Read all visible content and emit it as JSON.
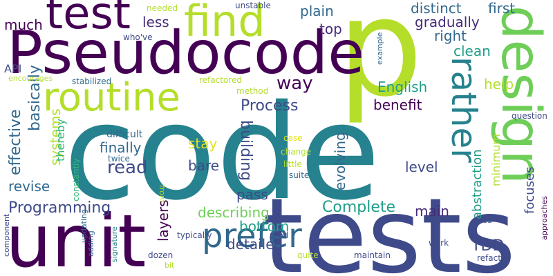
{
  "background": "#ffffff",
  "palette": {
    "dark_purple": "#440154",
    "indigo": "#472c7a",
    "slate_blue": "#3e4a89",
    "steel_blue": "#31688e",
    "teal": "#26828e",
    "green_teal": "#1f9e89",
    "green": "#35b779",
    "light_green": "#6ece58",
    "lime": "#b5de2b",
    "yellow": "#e3e418"
  },
  "words": [
    {
      "text": "code",
      "color": "#26828e"
    },
    {
      "text": "unit",
      "color": "#440154"
    },
    {
      "text": "tests",
      "color": "#3e4a89"
    },
    {
      "text": "p",
      "color": "#b5de2b"
    },
    {
      "text": "Pseudocode",
      "color": "#440154"
    },
    {
      "text": "design",
      "color": "#6ece58"
    },
    {
      "text": "test",
      "color": "#440154"
    },
    {
      "text": "find",
      "color": "#b5de2b"
    },
    {
      "text": "routine",
      "color": "#b5de2b"
    },
    {
      "text": "rather",
      "color": "#26828e"
    },
    {
      "text": "prefer",
      "color": "#31688e"
    },
    {
      "text": "Programming",
      "color": "#3e4a89"
    },
    {
      "text": "Complete",
      "color": "#1f9e89"
    },
    {
      "text": "Process",
      "color": "#3e4a89"
    },
    {
      "text": "read",
      "color": "#3e4a89"
    },
    {
      "text": "way",
      "color": "#440154"
    },
    {
      "text": "building",
      "color": "#3e4a89"
    },
    {
      "text": "basically",
      "color": "#31688e"
    },
    {
      "text": "effective",
      "color": "#31688e"
    },
    {
      "text": "systems",
      "color": "#b5de2b"
    },
    {
      "text": "plain",
      "color": "#31688e"
    },
    {
      "text": "distinct",
      "color": "#31688e"
    },
    {
      "text": "first",
      "color": "#31688e"
    },
    {
      "text": "much",
      "color": "#440154"
    },
    {
      "text": "less",
      "color": "#472c7a"
    },
    {
      "text": "top",
      "color": "#472c7a"
    },
    {
      "text": "gradually",
      "color": "#472c7a"
    },
    {
      "text": "right",
      "color": "#31688e"
    },
    {
      "text": "clean",
      "color": "#1f9e89"
    },
    {
      "text": "English",
      "color": "#1f9e89"
    },
    {
      "text": "help",
      "color": "#b5de2b"
    },
    {
      "text": "benefit",
      "color": "#440154"
    },
    {
      "text": "finally",
      "color": "#31688e"
    },
    {
      "text": "stay",
      "color": "#e3e418"
    },
    {
      "text": "bare",
      "color": "#3e4a89"
    },
    {
      "text": "revise",
      "color": "#31688e"
    },
    {
      "text": "evolving",
      "color": "#31688e"
    },
    {
      "text": "level",
      "color": "#3e4a89"
    },
    {
      "text": "abstraction",
      "color": "#1f9e89"
    },
    {
      "text": "minimum",
      "color": "#b5de2b"
    },
    {
      "text": "focuses",
      "color": "#3e4a89"
    },
    {
      "text": "describing",
      "color": "#6ece58"
    },
    {
      "text": "pass",
      "color": "#3e4a89"
    },
    {
      "text": "bottom",
      "color": "#1f9e89"
    },
    {
      "text": "detailed",
      "color": "#3e4a89"
    },
    {
      "text": "layers",
      "color": "#440154"
    },
    {
      "text": "main",
      "color": "#472c7a"
    },
    {
      "text": "TDD",
      "color": "#3e4a89"
    },
    {
      "text": "thereby",
      "color": "#35b779"
    },
    {
      "text": "API",
      "color": "#3e4a89"
    },
    {
      "text": "encourages",
      "color": "#b5de2b"
    },
    {
      "text": "stabilized",
      "color": "#31688e"
    },
    {
      "text": "refactored",
      "color": "#b5de2b"
    },
    {
      "text": "method",
      "color": "#b5de2b"
    },
    {
      "text": "who've",
      "color": "#3e4a89"
    },
    {
      "text": "needed",
      "color": "#b5de2b"
    },
    {
      "text": "unstable",
      "color": "#3e4a89"
    },
    {
      "text": "example",
      "color": "#31688e"
    },
    {
      "text": "difficult",
      "color": "#31688e"
    },
    {
      "text": "twice",
      "color": "#31688e"
    },
    {
      "text": "constantly",
      "color": "#35b779"
    },
    {
      "text": "case",
      "color": "#e3e418"
    },
    {
      "text": "change",
      "color": "#b5de2b"
    },
    {
      "text": "little",
      "color": "#b5de2b"
    },
    {
      "text": "suite",
      "color": "#31688e"
    },
    {
      "text": "question",
      "color": "#3e4a89"
    },
    {
      "text": "front",
      "color": "#b5de2b"
    },
    {
      "text": "component",
      "color": "#3e4a89"
    },
    {
      "text": "updating",
      "color": "#31688e"
    },
    {
      "text": "adding",
      "color": "#31688e"
    },
    {
      "text": "signature",
      "color": "#26828e"
    },
    {
      "text": "typically",
      "color": "#3e4a89"
    },
    {
      "text": "prod",
      "color": "#3e4a89"
    },
    {
      "text": "dozen",
      "color": "#3e4a89"
    },
    {
      "text": "bit",
      "color": "#b5de2b"
    },
    {
      "text": "quite",
      "color": "#b5de2b"
    },
    {
      "text": "maintain",
      "color": "#3e4a89"
    },
    {
      "text": "work",
      "color": "#3e4a89"
    },
    {
      "text": "refactor",
      "color": "#3e4a89"
    },
    {
      "text": "tried",
      "color": "#3e4a89"
    },
    {
      "text": "approaches",
      "color": "#440154"
    }
  ]
}
